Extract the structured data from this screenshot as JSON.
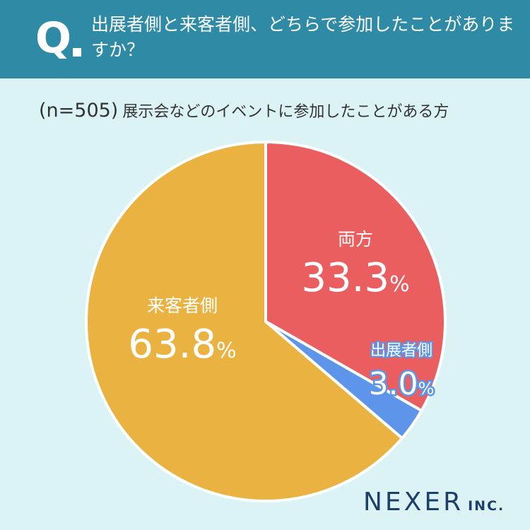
{
  "header": {
    "q_mark": "Q",
    "question": "出展者側と来客者側、どちらで参加したことがありますか？"
  },
  "subtitle": {
    "n": "(n=505)",
    "description": "展示会などのイベントに参加したことがある方"
  },
  "chart_data": {
    "type": "pie",
    "slices": [
      {
        "label": "両方",
        "value": 33.3,
        "display": "33.3",
        "color": "#eb5e60"
      },
      {
        "label": "出展者側",
        "value": 3.0,
        "display": "3.0",
        "color": "#5c95ea"
      },
      {
        "label": "来客者側",
        "value": 63.8,
        "display": "63.8",
        "color": "#eab341"
      }
    ],
    "unit": "%",
    "start": "12 o'clock",
    "direction": "clockwise"
  },
  "logo": {
    "name": "NEXER",
    "suffix": "INC."
  },
  "colors": {
    "header": "#2f8aa6",
    "background": "#dcf3f6",
    "logo": "#1d3f6b"
  }
}
